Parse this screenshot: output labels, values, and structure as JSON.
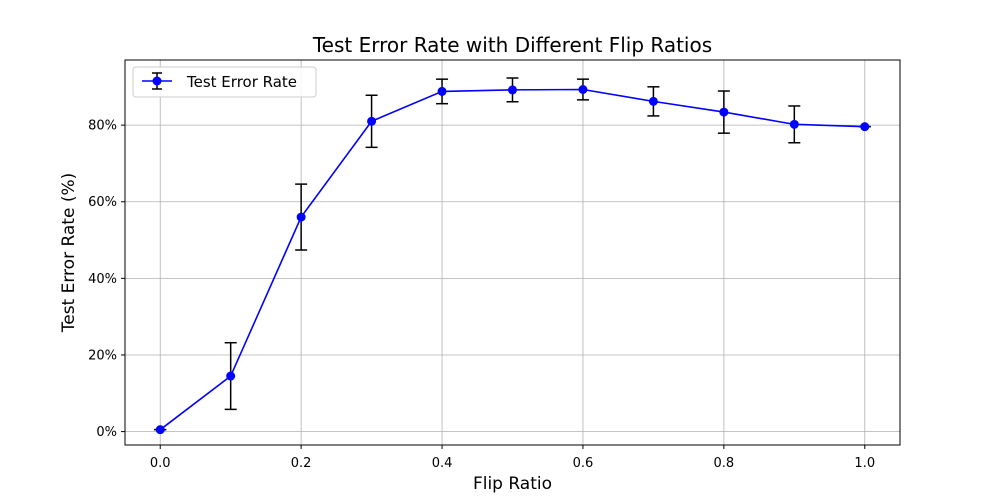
{
  "chart_data": {
    "type": "line",
    "title": "Test Error Rate with Different Flip Ratios",
    "xlabel": "Flip Ratio",
    "ylabel": "Test Error Rate (%)",
    "xlim": [
      -0.05,
      1.05
    ],
    "ylim": [
      -3.5,
      97
    ],
    "x_ticks": [
      0.0,
      0.2,
      0.4,
      0.6,
      0.8,
      1.0
    ],
    "x_tick_labels": [
      "0.0",
      "0.2",
      "0.4",
      "0.6",
      "0.8",
      "1.0"
    ],
    "y_ticks": [
      0,
      20,
      40,
      60,
      80
    ],
    "y_tick_labels": [
      "0%",
      "20%",
      "40%",
      "60%",
      "80%"
    ],
    "grid": true,
    "legend_position": "top-left",
    "series": [
      {
        "name": "Test Error Rate",
        "color": "#0000ff",
        "x": [
          0.0,
          0.1,
          0.2,
          0.3,
          0.4,
          0.5,
          0.6,
          0.7,
          0.8,
          0.9,
          1.0
        ],
        "y": [
          0.5,
          14.5,
          56.0,
          81.0,
          88.8,
          89.2,
          89.3,
          86.2,
          83.4,
          80.2,
          79.6
        ],
        "error": [
          0.0,
          8.7,
          8.6,
          6.8,
          3.2,
          3.1,
          2.7,
          3.8,
          5.5,
          4.8,
          0.0
        ]
      }
    ]
  }
}
